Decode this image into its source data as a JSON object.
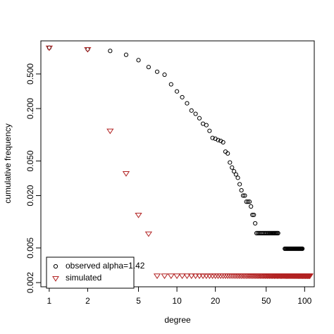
{
  "chart_data": {
    "type": "scatter",
    "xlabel": "degree",
    "ylabel": "cumulative frequency",
    "xscale": "log",
    "yscale": "log",
    "xlim": [
      0.86,
      119
    ],
    "ylim": [
      0.00179,
      1.2
    ],
    "xticks": [
      1,
      2,
      5,
      10,
      20,
      50,
      100
    ],
    "yticks": [
      0.002,
      0.005,
      {
        "value": 0.02,
        "label": "0.020"
      },
      {
        "value": 0.05,
        "label": "0.050"
      },
      {
        "value": 0.2,
        "label": "0.200"
      },
      {
        "value": 0.5,
        "label": "0.500"
      }
    ],
    "legend": "bottomleft",
    "series": [
      {
        "name": "observed alpha=1.42",
        "color": "#000000",
        "marker": "circle",
        "x": [
          1,
          2,
          3,
          4,
          5,
          6,
          7,
          8,
          9,
          10,
          11,
          12,
          13,
          14,
          15,
          16,
          17,
          18,
          19,
          20,
          21,
          22,
          23,
          24,
          25,
          26,
          27,
          28,
          29,
          30,
          31,
          32,
          33,
          34,
          35,
          36,
          37,
          38,
          39,
          40,
          41,
          42,
          43,
          44,
          45,
          46,
          47,
          48,
          49,
          50,
          51,
          52,
          53,
          54,
          55,
          56,
          57,
          58,
          59,
          60,
          61,
          62,
          70,
          71,
          72,
          73,
          74,
          75,
          76,
          77,
          78,
          79,
          80,
          81,
          82,
          83,
          84,
          85,
          86,
          87,
          88,
          89,
          90,
          91,
          92,
          93,
          94,
          95,
          96
        ],
        "values": [
          1,
          0.96,
          0.92,
          0.83,
          0.72,
          0.6,
          0.53,
          0.49,
          0.38,
          0.315,
          0.27,
          0.23,
          0.19,
          0.174,
          0.155,
          0.134,
          0.129,
          0.111,
          0.092,
          0.09,
          0.087,
          0.085,
          0.082,
          0.064,
          0.061,
          0.048,
          0.042,
          0.038,
          0.035,
          0.032,
          0.027,
          0.023,
          0.02,
          0.02,
          0.017,
          0.017,
          0.017,
          0.015,
          0.012,
          0.012,
          0.0096,
          0.0074,
          0.0074,
          0.0074,
          0.0074,
          0.0074,
          0.0074,
          0.0074,
          0.0074,
          0.0074,
          0.0074,
          0.0074,
          0.0074,
          0.0074,
          0.0074,
          0.0074,
          0.0074,
          0.0074,
          0.0074,
          0.0074,
          0.0074,
          0.0074,
          0.0049,
          0.0049,
          0.0049,
          0.0049,
          0.0049,
          0.0049,
          0.0049,
          0.0049,
          0.0049,
          0.0049,
          0.0049,
          0.0049,
          0.0049,
          0.0049,
          0.0049,
          0.0049,
          0.0049,
          0.0049,
          0.0049,
          0.0049,
          0.0049,
          0.0049,
          0.0049,
          0.0049,
          0.0049,
          0.0049,
          0.0049
        ]
      },
      {
        "name": "simulated",
        "color": "#b22222",
        "marker": "triangle-down",
        "x": [
          1,
          2,
          3,
          4,
          5,
          6,
          7,
          8,
          9,
          10,
          11,
          12,
          13,
          14,
          15,
          16,
          17,
          18,
          19,
          20,
          21,
          22,
          23,
          24,
          25,
          26,
          27,
          28,
          29,
          30,
          31,
          32,
          33,
          34,
          35,
          36,
          37,
          38,
          39,
          40,
          41,
          42,
          43,
          44,
          45,
          46,
          47,
          48,
          49,
          50,
          51,
          52,
          53,
          54,
          55,
          56,
          57,
          58,
          59,
          60,
          61,
          62,
          63,
          64,
          65,
          66,
          67,
          68,
          69,
          70,
          71,
          72,
          73,
          74,
          75,
          76,
          77,
          78,
          79,
          80,
          81,
          82,
          83,
          84,
          85,
          86,
          87,
          88,
          89,
          90,
          91,
          92,
          93,
          94,
          95,
          96,
          97,
          98,
          99,
          100,
          101,
          102,
          103,
          104,
          105,
          106,
          107,
          108,
          109,
          110
        ],
        "values": [
          1,
          0.96,
          0.111,
          0.036,
          0.012,
          0.0073,
          0.0024,
          0.0024,
          0.0024,
          0.0024,
          0.0024,
          0.0024,
          0.0024,
          0.0024,
          0.0024,
          0.0024,
          0.0024,
          0.0024,
          0.0024,
          0.0024,
          0.0024,
          0.0024,
          0.0024,
          0.0024,
          0.0024,
          0.0024,
          0.0024,
          0.0024,
          0.0024,
          0.0024,
          0.0024,
          0.0024,
          0.0024,
          0.0024,
          0.0024,
          0.0024,
          0.0024,
          0.0024,
          0.0024,
          0.0024,
          0.0024,
          0.0024,
          0.0024,
          0.0024,
          0.0024,
          0.0024,
          0.0024,
          0.0024,
          0.0024,
          0.0024,
          0.0024,
          0.0024,
          0.0024,
          0.0024,
          0.0024,
          0.0024,
          0.0024,
          0.0024,
          0.0024,
          0.0024,
          0.0024,
          0.0024,
          0.0024,
          0.0024,
          0.0024,
          0.0024,
          0.0024,
          0.0024,
          0.0024,
          0.0024,
          0.0024,
          0.0024,
          0.0024,
          0.0024,
          0.0024,
          0.0024,
          0.0024,
          0.0024,
          0.0024,
          0.0024,
          0.0024,
          0.0024,
          0.0024,
          0.0024,
          0.0024,
          0.0024,
          0.0024,
          0.0024,
          0.0024,
          0.0024,
          0.0024,
          0.0024,
          0.0024,
          0.0024,
          0.0024,
          0.0024,
          0.0024,
          0.0024,
          0.0024,
          0.0024,
          0.0024,
          0.0024,
          0.0024,
          0.0024,
          0.0024,
          0.0024,
          0.0024,
          0.0024,
          0.0024,
          0.0024
        ]
      }
    ]
  }
}
